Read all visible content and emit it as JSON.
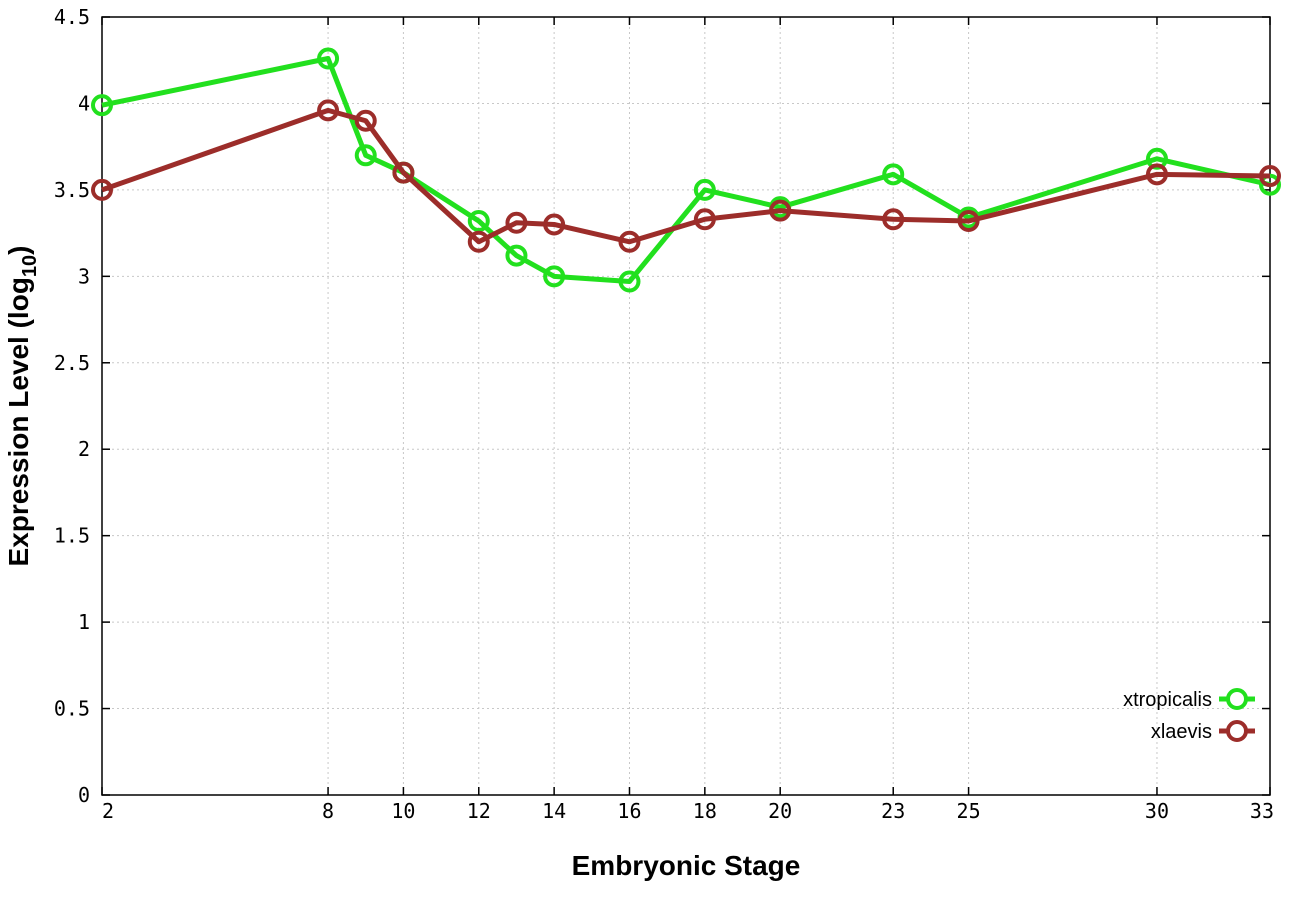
{
  "chart_data": {
    "type": "line",
    "xlabel": "Embryonic Stage",
    "ylabel": "Expression Level (log",
    "ylabel_subscript": "10",
    "ylabel_close": ")",
    "ylim": [
      0,
      4.5
    ],
    "yticks": [
      0,
      0.5,
      1,
      1.5,
      2,
      2.5,
      3,
      3.5,
      4,
      4.5
    ],
    "ytick_labels": [
      "0",
      "0.5",
      "1",
      "1.5",
      "2",
      "2.5",
      "3",
      "3.5",
      "4",
      "4.5"
    ],
    "xlim": [
      2,
      33
    ],
    "xticks": [
      2,
      8,
      10,
      12,
      14,
      16,
      18,
      20,
      23,
      25,
      30,
      33
    ],
    "xtick_labels": [
      "2",
      "8",
      "10",
      "12",
      "14",
      "16",
      "18",
      "20",
      "23",
      "25",
      "30",
      "33"
    ],
    "grid": true,
    "legend_position": "bottom-right",
    "series": [
      {
        "name": "xtropicalis",
        "color": "#22e01e",
        "marker": "open-circle",
        "x": [
          2,
          8,
          9,
          10,
          12,
          13,
          14,
          16,
          18,
          20,
          23,
          25,
          30,
          33
        ],
        "y": [
          3.99,
          4.26,
          3.7,
          3.6,
          3.32,
          3.12,
          3.0,
          2.97,
          3.5,
          3.4,
          3.59,
          3.34,
          3.68,
          3.53
        ]
      },
      {
        "name": "xlaevis",
        "color": "#9c2d2a",
        "marker": "open-circle",
        "x": [
          2,
          8,
          9,
          10,
          12,
          13,
          14,
          16,
          18,
          20,
          23,
          25,
          30,
          33
        ],
        "y": [
          3.5,
          3.96,
          3.9,
          3.6,
          3.2,
          3.31,
          3.3,
          3.2,
          3.33,
          3.38,
          3.33,
          3.32,
          3.59,
          3.58
        ]
      }
    ]
  }
}
